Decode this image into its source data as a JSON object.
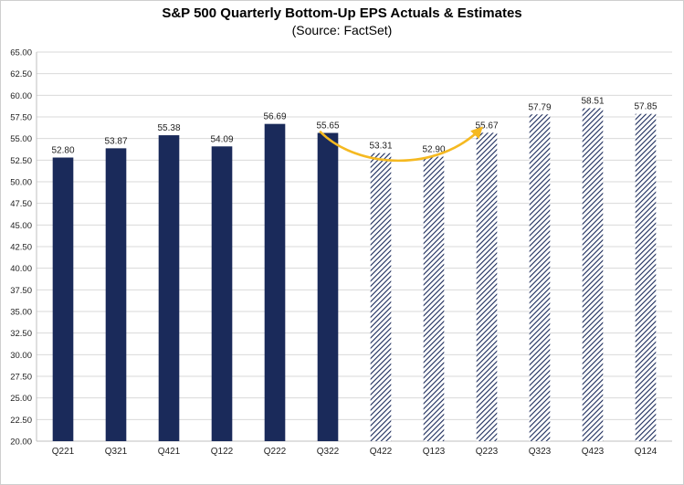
{
  "chart_data": {
    "type": "bar",
    "title": "S&P 500 Quarterly Bottom-Up EPS Actuals & Estimates",
    "subtitle": "(Source: FactSet)",
    "categories": [
      "Q221",
      "Q321",
      "Q421",
      "Q122",
      "Q222",
      "Q322",
      "Q422",
      "Q123",
      "Q223",
      "Q323",
      "Q423",
      "Q124"
    ],
    "values": [
      52.8,
      53.87,
      55.38,
      54.09,
      56.69,
      55.65,
      53.31,
      52.9,
      55.67,
      57.79,
      58.51,
      57.85
    ],
    "value_labels": [
      "52.80",
      "53.87",
      "55.38",
      "54.09",
      "56.69",
      "55.65",
      "53.31",
      "52.90",
      "55.67",
      "57.79",
      "58.51",
      "57.85"
    ],
    "series_kind": [
      "actual",
      "actual",
      "actual",
      "actual",
      "actual",
      "actual",
      "estimate",
      "estimate",
      "estimate",
      "estimate",
      "estimate",
      "estimate"
    ],
    "ylim": [
      20.0,
      65.0
    ],
    "ytick_step": 2.5,
    "ytick_labels": [
      "65.00",
      "62.50",
      "60.00",
      "57.50",
      "55.00",
      "52.50",
      "50.00",
      "47.50",
      "45.00",
      "42.50",
      "40.00",
      "37.50",
      "35.00",
      "32.50",
      "30.00",
      "27.50",
      "25.00",
      "22.50",
      "20.00"
    ],
    "xlabel": "",
    "ylabel": "",
    "grid": true,
    "annotation": {
      "type": "curved-arrow",
      "from_category": "Q322",
      "to_category": "Q223",
      "color": "#f5b921"
    },
    "colors": {
      "actual": "#1a2a5a",
      "estimate": "#1a2a5a",
      "grid": "#d9d9d9",
      "arrow": "#f5b921"
    }
  }
}
